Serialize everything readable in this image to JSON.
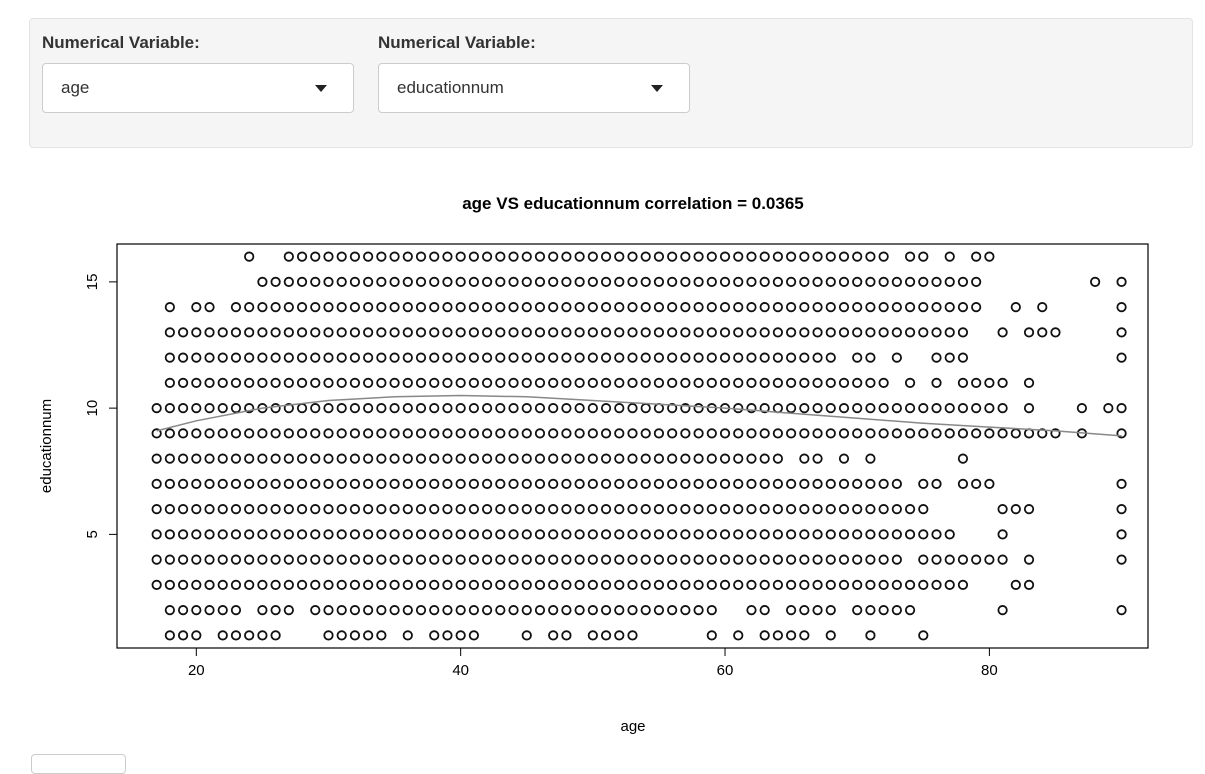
{
  "controls": [
    {
      "label": "Numerical Variable:",
      "value": "age"
    },
    {
      "label": "Numerical Variable:",
      "value": "educationnum"
    }
  ],
  "chart_data": {
    "type": "scatter",
    "title": "age VS educationnum correlation = 0.0365",
    "xlabel": "age",
    "ylabel": "educationnum",
    "xlim": [
      14,
      92
    ],
    "ylim": [
      0.5,
      16.5
    ],
    "x_ticks": [
      20,
      40,
      60,
      80
    ],
    "y_ticks": [
      5,
      10,
      15
    ],
    "grid": false,
    "marker": "open-circle",
    "x_values_note": "integer ages",
    "rows": [
      {
        "y": 16,
        "ranges": [
          [
            24,
            24
          ],
          [
            27,
            72
          ],
          [
            74,
            75
          ],
          [
            77,
            77
          ],
          [
            79,
            80
          ]
        ]
      },
      {
        "y": 15,
        "ranges": [
          [
            25,
            79
          ],
          [
            88,
            88
          ],
          [
            90,
            90
          ]
        ]
      },
      {
        "y": 14,
        "ranges": [
          [
            18,
            18
          ],
          [
            20,
            21
          ],
          [
            23,
            79
          ],
          [
            82,
            82
          ],
          [
            84,
            84
          ],
          [
            90,
            90
          ]
        ]
      },
      {
        "y": 13,
        "ranges": [
          [
            18,
            78
          ],
          [
            81,
            81
          ],
          [
            83,
            85
          ],
          [
            90,
            90
          ]
        ]
      },
      {
        "y": 12,
        "ranges": [
          [
            18,
            68
          ],
          [
            70,
            71
          ],
          [
            73,
            73
          ],
          [
            76,
            78
          ],
          [
            90,
            90
          ]
        ]
      },
      {
        "y": 11,
        "ranges": [
          [
            18,
            72
          ],
          [
            74,
            74
          ],
          [
            76,
            76
          ],
          [
            78,
            81
          ],
          [
            83,
            83
          ]
        ]
      },
      {
        "y": 10,
        "ranges": [
          [
            17,
            81
          ],
          [
            83,
            83
          ],
          [
            87,
            87
          ],
          [
            89,
            90
          ]
        ]
      },
      {
        "y": 9,
        "ranges": [
          [
            17,
            85
          ],
          [
            87,
            87
          ],
          [
            90,
            90
          ]
        ]
      },
      {
        "y": 8,
        "ranges": [
          [
            17,
            64
          ],
          [
            66,
            67
          ],
          [
            69,
            69
          ],
          [
            71,
            71
          ],
          [
            78,
            78
          ]
        ]
      },
      {
        "y": 7,
        "ranges": [
          [
            17,
            73
          ],
          [
            75,
            76
          ],
          [
            78,
            80
          ],
          [
            90,
            90
          ]
        ]
      },
      {
        "y": 6,
        "ranges": [
          [
            17,
            75
          ],
          [
            81,
            83
          ],
          [
            90,
            90
          ]
        ]
      },
      {
        "y": 5,
        "ranges": [
          [
            17,
            77
          ],
          [
            81,
            81
          ],
          [
            90,
            90
          ]
        ]
      },
      {
        "y": 4,
        "ranges": [
          [
            17,
            73
          ],
          [
            75,
            81
          ],
          [
            83,
            83
          ],
          [
            90,
            90
          ]
        ]
      },
      {
        "y": 3,
        "ranges": [
          [
            17,
            78
          ],
          [
            82,
            83
          ]
        ]
      },
      {
        "y": 2,
        "ranges": [
          [
            18,
            23
          ],
          [
            25,
            27
          ],
          [
            29,
            59
          ],
          [
            62,
            63
          ],
          [
            65,
            68
          ],
          [
            70,
            74
          ],
          [
            81,
            81
          ],
          [
            90,
            90
          ]
        ]
      },
      {
        "y": 1,
        "ranges": [
          [
            18,
            20
          ],
          [
            22,
            26
          ],
          [
            30,
            34
          ],
          [
            36,
            36
          ],
          [
            38,
            41
          ],
          [
            45,
            45
          ],
          [
            47,
            48
          ],
          [
            50,
            53
          ],
          [
            59,
            59
          ],
          [
            61,
            61
          ],
          [
            63,
            66
          ],
          [
            68,
            68
          ],
          [
            71,
            71
          ],
          [
            75,
            75
          ]
        ]
      }
    ],
    "smooth_line": {
      "x": [
        17,
        20,
        25,
        30,
        35,
        40,
        45,
        50,
        55,
        60,
        65,
        70,
        75,
        80,
        85,
        90
      ],
      "y": [
        9.1,
        9.5,
        10.0,
        10.3,
        10.45,
        10.5,
        10.45,
        10.3,
        10.15,
        10.0,
        9.8,
        9.6,
        9.4,
        9.25,
        9.1,
        8.9
      ]
    }
  }
}
